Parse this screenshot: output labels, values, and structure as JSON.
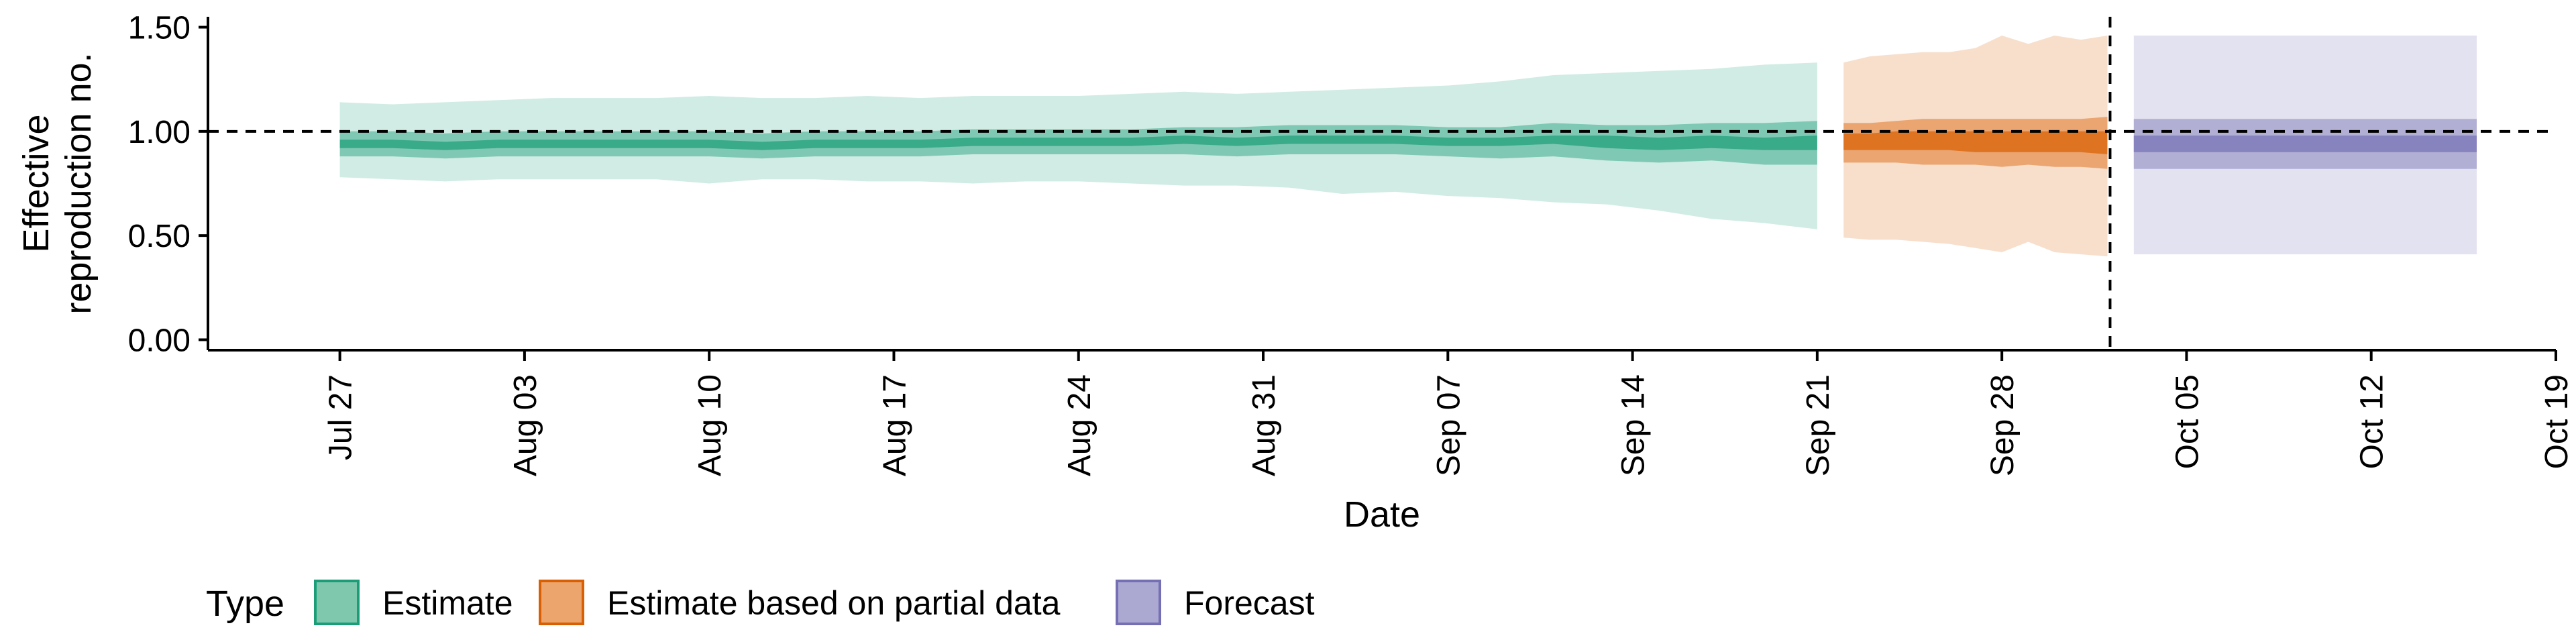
{
  "chart_data": {
    "type": "area",
    "xlabel": "Date",
    "ylabel": [
      "Effective",
      "reproduction no."
    ],
    "ylim": [
      -0.05,
      1.55
    ],
    "xlim": [
      "2020-07-22",
      "2020-10-19"
    ],
    "y_ticks": [
      0.0,
      0.5,
      1.0,
      1.5
    ],
    "y_tick_labels": [
      "0.00",
      "0.50",
      "1.00",
      "1.50"
    ],
    "x_ticks": [
      "2020-07-27",
      "2020-08-03",
      "2020-08-10",
      "2020-08-17",
      "2020-08-24",
      "2020-08-31",
      "2020-09-07",
      "2020-09-14",
      "2020-09-21",
      "2020-09-28",
      "2020-10-05",
      "2020-10-12",
      "2020-10-19"
    ],
    "x_tick_labels": [
      "Jul 27",
      "Aug 03",
      "Aug 10",
      "Aug 17",
      "Aug 24",
      "Aug 31",
      "Sep 07",
      "Sep 14",
      "Sep 21",
      "Sep 28",
      "Oct 05",
      "Oct 12",
      "Oct 19"
    ],
    "reference_line_y": 1.0,
    "forecast_date": "2020-10-02",
    "grid": false,
    "legend": {
      "title": "Type",
      "position": "bottom-left",
      "entries": [
        {
          "label": "Estimate",
          "fill": "#7fc7ad",
          "stroke": "#1b9e77"
        },
        {
          "label": "Estimate based on partial data",
          "fill": "#eca56c",
          "stroke": "#d95f02"
        },
        {
          "label": "Forecast",
          "fill": "#aba8d2",
          "stroke": "#7570b3"
        }
      ]
    },
    "series": [
      {
        "name": "Estimate",
        "color": "#1b9e77",
        "x": [
          "2020-07-27",
          "2020-07-29",
          "2020-07-31",
          "2020-08-02",
          "2020-08-04",
          "2020-08-06",
          "2020-08-08",
          "2020-08-10",
          "2020-08-12",
          "2020-08-14",
          "2020-08-16",
          "2020-08-18",
          "2020-08-20",
          "2020-08-22",
          "2020-08-24",
          "2020-08-26",
          "2020-08-28",
          "2020-08-30",
          "2020-09-01",
          "2020-09-03",
          "2020-09-05",
          "2020-09-07",
          "2020-09-09",
          "2020-09-11",
          "2020-09-13",
          "2020-09-15",
          "2020-09-17",
          "2020-09-19",
          "2020-09-21"
        ],
        "median": [
          0.94,
          0.94,
          0.93,
          0.94,
          0.94,
          0.94,
          0.94,
          0.94,
          0.93,
          0.94,
          0.94,
          0.94,
          0.95,
          0.95,
          0.95,
          0.95,
          0.96,
          0.95,
          0.96,
          0.96,
          0.96,
          0.95,
          0.95,
          0.96,
          0.95,
          0.94,
          0.95,
          0.94,
          0.95
        ],
        "ci90_lower": [
          0.78,
          0.77,
          0.76,
          0.77,
          0.77,
          0.77,
          0.77,
          0.75,
          0.77,
          0.77,
          0.76,
          0.76,
          0.75,
          0.76,
          0.76,
          0.75,
          0.74,
          0.74,
          0.73,
          0.7,
          0.71,
          0.69,
          0.68,
          0.66,
          0.65,
          0.62,
          0.58,
          0.56,
          0.53
        ],
        "ci90_upper": [
          1.14,
          1.13,
          1.14,
          1.15,
          1.16,
          1.16,
          1.16,
          1.17,
          1.16,
          1.16,
          1.17,
          1.16,
          1.17,
          1.17,
          1.17,
          1.18,
          1.19,
          1.18,
          1.19,
          1.2,
          1.21,
          1.22,
          1.24,
          1.27,
          1.28,
          1.29,
          1.3,
          1.32,
          1.33
        ],
        "ci50_lower": [
          0.88,
          0.88,
          0.87,
          0.88,
          0.88,
          0.88,
          0.88,
          0.88,
          0.87,
          0.88,
          0.88,
          0.88,
          0.89,
          0.89,
          0.89,
          0.89,
          0.89,
          0.88,
          0.89,
          0.89,
          0.89,
          0.88,
          0.87,
          0.88,
          0.86,
          0.85,
          0.86,
          0.84,
          0.84
        ],
        "ci50_upper": [
          1.0,
          1.0,
          0.99,
          1.0,
          1.0,
          1.0,
          1.0,
          1.0,
          0.99,
          1.0,
          1.0,
          1.0,
          1.01,
          1.01,
          1.01,
          1.01,
          1.02,
          1.02,
          1.03,
          1.03,
          1.03,
          1.02,
          1.02,
          1.04,
          1.03,
          1.03,
          1.04,
          1.04,
          1.05
        ],
        "ci20_lower": [
          0.92,
          0.92,
          0.91,
          0.92,
          0.92,
          0.92,
          0.92,
          0.92,
          0.91,
          0.92,
          0.92,
          0.92,
          0.93,
          0.93,
          0.93,
          0.93,
          0.94,
          0.93,
          0.94,
          0.94,
          0.94,
          0.93,
          0.93,
          0.94,
          0.92,
          0.91,
          0.92,
          0.91,
          0.91
        ],
        "ci20_upper": [
          0.96,
          0.96,
          0.95,
          0.96,
          0.96,
          0.96,
          0.96,
          0.96,
          0.95,
          0.96,
          0.96,
          0.96,
          0.97,
          0.97,
          0.97,
          0.97,
          0.98,
          0.97,
          0.98,
          0.98,
          0.98,
          0.97,
          0.97,
          0.98,
          0.98,
          0.97,
          0.98,
          0.97,
          0.98
        ]
      },
      {
        "name": "Estimate based on partial data",
        "color": "#d95f02",
        "x": [
          "2020-09-22",
          "2020-09-23",
          "2020-09-24",
          "2020-09-25",
          "2020-09-26",
          "2020-09-27",
          "2020-09-28",
          "2020-09-29",
          "2020-09-30",
          "2020-10-01",
          "2020-10-02"
        ],
        "median": [
          0.95,
          0.95,
          0.96,
          0.96,
          0.96,
          0.95,
          0.95,
          0.95,
          0.96,
          0.96,
          0.95
        ],
        "ci90_lower": [
          0.49,
          0.48,
          0.48,
          0.47,
          0.46,
          0.44,
          0.42,
          0.47,
          0.42,
          0.41,
          0.4
        ],
        "ci90_upper": [
          1.33,
          1.36,
          1.37,
          1.38,
          1.38,
          1.4,
          1.46,
          1.42,
          1.46,
          1.44,
          1.46
        ],
        "ci50_lower": [
          0.85,
          0.85,
          0.85,
          0.84,
          0.84,
          0.84,
          0.83,
          0.84,
          0.83,
          0.83,
          0.82
        ],
        "ci50_upper": [
          1.04,
          1.04,
          1.05,
          1.06,
          1.06,
          1.06,
          1.06,
          1.06,
          1.06,
          1.06,
          1.07
        ],
        "ci20_lower": [
          0.91,
          0.91,
          0.91,
          0.91,
          0.91,
          0.9,
          0.9,
          0.9,
          0.9,
          0.9,
          0.89
        ],
        "ci20_upper": [
          0.99,
          0.99,
          1.0,
          1.0,
          1.0,
          1.0,
          1.0,
          1.0,
          1.0,
          1.0,
          1.0
        ]
      },
      {
        "name": "Forecast",
        "color": "#7570b3",
        "x": [
          "2020-10-03",
          "2020-10-16"
        ],
        "median": [
          0.94,
          0.94
        ],
        "ci90_lower": [
          0.41,
          0.41
        ],
        "ci90_upper": [
          1.46,
          1.46
        ],
        "ci50_lower": [
          0.82,
          0.82
        ],
        "ci50_upper": [
          1.06,
          1.06
        ],
        "ci20_lower": [
          0.9,
          0.9
        ],
        "ci20_upper": [
          0.98,
          0.98
        ]
      }
    ]
  }
}
